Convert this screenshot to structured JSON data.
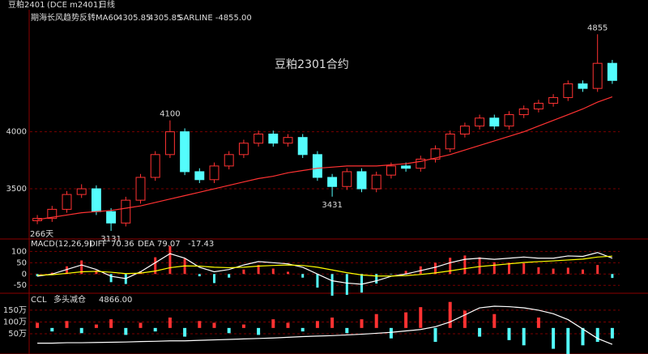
{
  "header": {
    "symbol": "豆粕2401",
    "code": "(DCE m2401)",
    "period": "日线"
  },
  "chart_data": [
    {
      "type": "candlestick",
      "annotation": "豆粕2301合约",
      "indicator": "期海长风趋势反转",
      "sar_legend": "SARLINE -4855.00",
      "days_label": "266天",
      "up_color": "#ff3232",
      "down_color": "#54fcfc",
      "ylim": [
        3060,
        5070
      ],
      "yticks": [
        3500,
        4000
      ],
      "grid": true,
      "open": [
        3220,
        3240,
        3320,
        3450,
        3500,
        3300,
        3200,
        3400,
        3600,
        3800,
        4000,
        3650,
        3580,
        3700,
        3800,
        3900,
        3980,
        3900,
        3950,
        3800,
        3600,
        3520,
        3650,
        3500,
        3620,
        3700,
        3680,
        3760,
        3850,
        3980,
        4050,
        4120,
        4050,
        4150,
        4200,
        4250,
        4300,
        4420,
        4380,
        4600
      ],
      "high": [
        3270,
        3350,
        3480,
        3540,
        3530,
        3330,
        3430,
        3630,
        3830,
        4100,
        4030,
        3680,
        3730,
        3830,
        3930,
        4010,
        4010,
        3980,
        3980,
        3830,
        3630,
        3680,
        3680,
        3650,
        3730,
        3730,
        3790,
        3880,
        4010,
        4080,
        4150,
        4150,
        4180,
        4230,
        4280,
        4330,
        4450,
        4450,
        4855,
        4630
      ],
      "low": [
        3190,
        3210,
        3290,
        3420,
        3270,
        3131,
        3170,
        3370,
        3570,
        3770,
        3620,
        3550,
        3550,
        3670,
        3770,
        3870,
        3870,
        3870,
        3770,
        3570,
        3431,
        3490,
        3470,
        3470,
        3590,
        3650,
        3650,
        3730,
        3820,
        3950,
        4020,
        4020,
        4020,
        4120,
        4170,
        4220,
        4270,
        4350,
        4350,
        4420
      ],
      "close": [
        3240,
        3320,
        3450,
        3500,
        3300,
        3200,
        3400,
        3600,
        3800,
        4000,
        3650,
        3580,
        3700,
        3800,
        3900,
        3980,
        3900,
        3950,
        3800,
        3600,
        3520,
        3650,
        3500,
        3620,
        3700,
        3680,
        3760,
        3850,
        3980,
        4050,
        4120,
        4050,
        4150,
        4200,
        4250,
        4300,
        4420,
        4380,
        4600,
        4450
      ],
      "ma": {
        "name": "MA60",
        "color": "#ff3232",
        "values": [
          3230,
          3250,
          3270,
          3290,
          3300,
          3310,
          3330,
          3350,
          3380,
          3410,
          3440,
          3470,
          3500,
          3530,
          3560,
          3590,
          3610,
          3640,
          3660,
          3680,
          3690,
          3700,
          3700,
          3700,
          3710,
          3720,
          3740,
          3770,
          3800,
          3840,
          3880,
          3920,
          3960,
          4000,
          4050,
          4100,
          4150,
          4200,
          4260,
          4305.85
        ]
      }
    },
    {
      "type": "macd",
      "title": "MACD(12,26,9)",
      "ylim": [
        -85,
        155
      ],
      "yticks": [
        -50,
        0,
        50,
        100
      ],
      "grid": true,
      "up_color": "#ff3232",
      "down_color": "#54fcfc",
      "series": [
        {
          "name": "DIFF",
          "color": "#ffffff",
          "values": [
            -10,
            0,
            20,
            40,
            20,
            -10,
            -20,
            10,
            50,
            90,
            70,
            30,
            10,
            20,
            40,
            55,
            50,
            45,
            30,
            0,
            -30,
            -40,
            -45,
            -30,
            -10,
            0,
            15,
            30,
            50,
            65,
            70,
            65,
            70,
            75,
            70,
            70,
            80,
            78,
            95,
            70.36
          ]
        },
        {
          "name": "DEA",
          "color": "#ffff00",
          "values": [
            -5,
            -3,
            3,
            10,
            12,
            8,
            2,
            4,
            13,
            28,
            36,
            35,
            30,
            28,
            30,
            35,
            38,
            40,
            38,
            30,
            18,
            6,
            -4,
            -9,
            -9,
            -7,
            -2,
            5,
            14,
            24,
            33,
            39,
            45,
            51,
            55,
            58,
            62,
            66,
            75,
            79.07
          ]
        }
      ],
      "histogram": [
        -10,
        6,
        34,
        60,
        16,
        -36,
        -44,
        12,
        74,
        124,
        68,
        -10,
        -40,
        -16,
        20,
        40,
        24,
        10,
        -16,
        -60,
        -96,
        -92,
        -82,
        -42,
        -2,
        14,
        34,
        50,
        72,
        82,
        74,
        52,
        50,
        48,
        30,
        24,
        28,
        20,
        40,
        -17.43
      ]
    },
    {
      "type": "ccl",
      "title": "CCL",
      "status": "多头减仓",
      "status_color": "#00e000",
      "value_text": "4866.00",
      "ylim": [
        -36,
        222
      ],
      "yticks": [
        {
          "value": 50,
          "label": "50万"
        },
        {
          "value": 100,
          "label": "100万"
        },
        {
          "value": 150,
          "label": "150万"
        }
      ],
      "grid": true,
      "y2lim": [
        -15,
        20
      ],
      "y2ticks": [],
      "up_color": "#ff3232",
      "down_color": "#54fcfc",
      "line": {
        "color": "#ffffff",
        "values": [
          10,
          10,
          12,
          12,
          13,
          14,
          15,
          17,
          18,
          20,
          20,
          22,
          24,
          26,
          28,
          30,
          32,
          35,
          38,
          40,
          42,
          45,
          48,
          52,
          56,
          62,
          68,
          80,
          100,
          130,
          160,
          167,
          165,
          160,
          150,
          135,
          110,
          70,
          30,
          5
        ]
      },
      "bars": {
        "axis": "y2",
        "values": [
          3,
          -2,
          4,
          -3,
          2,
          5,
          -4,
          3,
          -2,
          6,
          -5,
          4,
          3,
          -3,
          2,
          -4,
          5,
          3,
          -2,
          4,
          6,
          -3,
          5,
          8,
          -6,
          9,
          12,
          -8,
          15,
          10,
          -5,
          8,
          -7,
          -10,
          6,
          -12,
          -15,
          -10,
          -8,
          -6
        ]
      }
    }
  ]
}
